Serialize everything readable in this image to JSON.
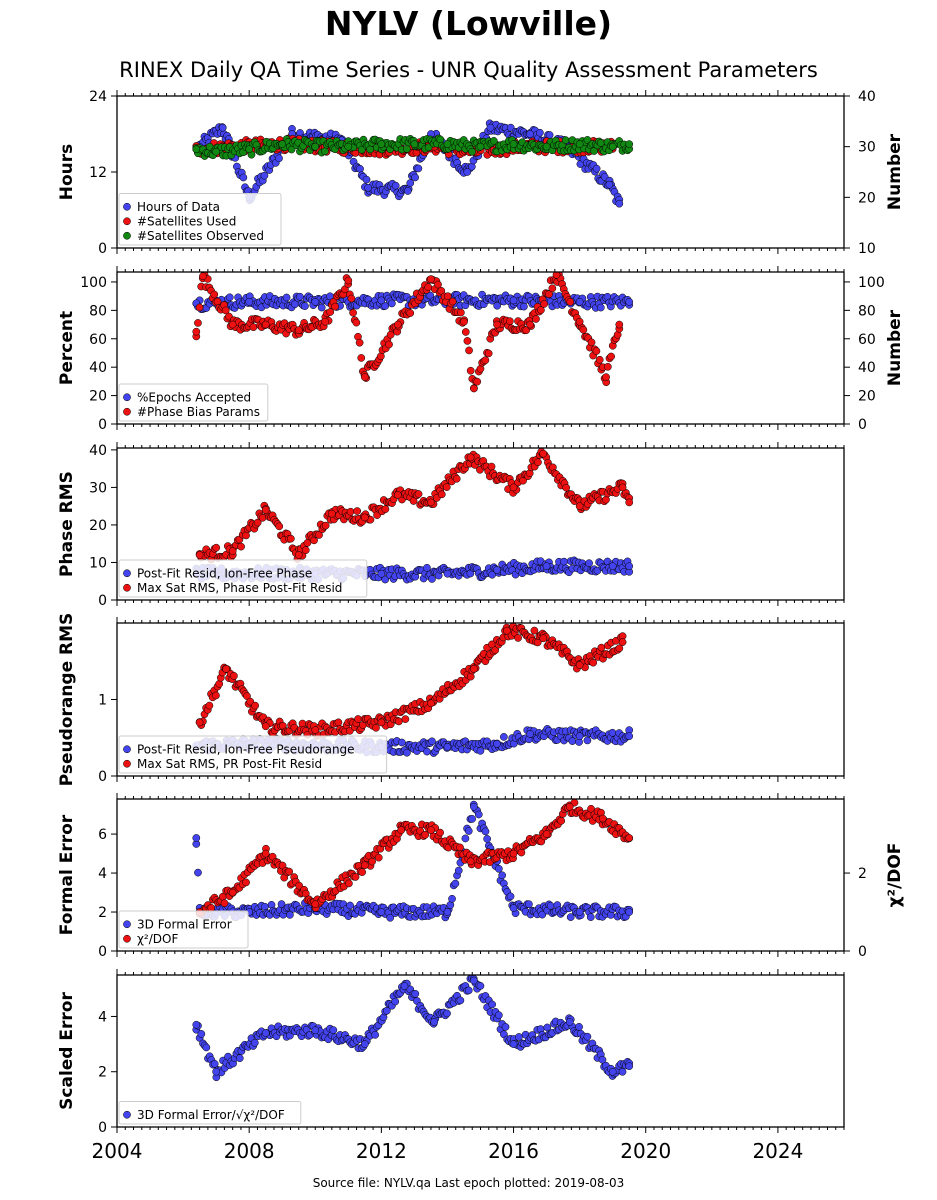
{
  "title": "NYLV (Lowville)",
  "subtitle": "RINEX Daily QA Time Series - UNR Quality Assessment Parameters",
  "footer": "Source file: NYLV.qa Last epoch plotted: 2019-08-03",
  "colors": {
    "blue": "#4444ee",
    "red": "#ee1111",
    "green": "#118811",
    "edge": "#000000"
  },
  "chart_data": [
    {
      "type": "scatter",
      "ylabel": "Hours",
      "ylabel_right": "Number",
      "xlim": [
        2004,
        2026
      ],
      "ylim": [
        0,
        24
      ],
      "ylim_right": [
        10,
        40
      ],
      "yticks": [
        "0",
        "12",
        "24"
      ],
      "yticks_right": [
        "10",
        "20",
        "30",
        "40"
      ],
      "legend_position": "lower-left",
      "series": [
        {
          "name": "Hours of Data",
          "color": "blue",
          "axis": "left",
          "x": [
            2006.5,
            2007.2,
            2008.0,
            2009.3,
            2010.8,
            2011.6,
            2012.8,
            2013.5,
            2014.6,
            2015.3,
            2016.5,
            2017.6,
            2018.9,
            2019.2
          ],
          "y": [
            16,
            19,
            8,
            18,
            17,
            9.5,
            9,
            18,
            12,
            19,
            18,
            16,
            10,
            7
          ]
        },
        {
          "name": "#Satellites Used",
          "color": "red",
          "axis": "right",
          "x": [
            2006.4,
            2007.5,
            2009.0,
            2010.5,
            2012.0,
            2013.6,
            2014.8,
            2016.2,
            2017.8,
            2019.0
          ],
          "y": [
            29.5,
            30,
            30.5,
            30,
            29.5,
            30,
            29,
            30,
            30,
            30
          ]
        },
        {
          "name": "#Satellites Observed",
          "color": "green",
          "axis": "right",
          "x": [
            2006.4,
            2007.0,
            2008.0,
            2009.0,
            2010.0,
            2011.0,
            2012.0,
            2013.0,
            2014.0,
            2015.0,
            2016.0,
            2017.0,
            2018.0,
            2019.0,
            2019.5
          ],
          "y": [
            29.5,
            29,
            29.5,
            30.5,
            30,
            30,
            30.5,
            30.5,
            30.5,
            30,
            30.5,
            30,
            30.5,
            30,
            30.5
          ]
        }
      ]
    },
    {
      "type": "scatter",
      "ylabel": "Percent",
      "ylabel_right": "Number",
      "xlim": [
        2004,
        2026
      ],
      "ylim": [
        0,
        107
      ],
      "yticks": [
        "0",
        "20",
        "40",
        "60",
        "80",
        "100"
      ],
      "yticks_right": [
        "0",
        "20",
        "40",
        "60",
        "80",
        "100"
      ],
      "legend_position": "lower-left",
      "series": [
        {
          "name": "%Epochs Accepted",
          "color": "blue",
          "axis": "left",
          "x": [
            2006.4,
            2008.0,
            2010.0,
            2012.0,
            2014.0,
            2016.0,
            2018.0,
            2019.5
          ],
          "y": [
            85,
            86,
            86,
            87,
            87,
            87,
            86,
            86
          ]
        },
        {
          "name": "#Phase Bias Params",
          "color": "red",
          "axis": "right",
          "x": [
            2006.4,
            2006.6,
            2007.5,
            2008.5,
            2009.5,
            2010.3,
            2011.0,
            2011.5,
            2012.5,
            2013.5,
            2014.5,
            2014.8,
            2015.5,
            2016.5,
            2017.3,
            2018.0,
            2018.8,
            2019.2
          ],
          "y": [
            65,
            104,
            70,
            70,
            66,
            72,
            101,
            33,
            70,
            102,
            72,
            25,
            70,
            70,
            105,
            72,
            33,
            70
          ]
        }
      ]
    },
    {
      "type": "scatter",
      "ylabel": "Phase RMS",
      "xlim": [
        2004,
        2026
      ],
      "ylim": [
        0,
        40.5
      ],
      "yticks": [
        "0",
        "10",
        "20",
        "30",
        "40"
      ],
      "legend_position": "lower-left",
      "series": [
        {
          "name": "Post-Fit Resid, Ion-Free Phase",
          "color": "blue",
          "axis": "left",
          "x": [
            2006.4,
            2008.0,
            2010.0,
            2012.0,
            2014.0,
            2015.5,
            2017.0,
            2019.0,
            2019.5
          ],
          "y": [
            7,
            7,
            7,
            7,
            7,
            8,
            9,
            9,
            9
          ]
        },
        {
          "name": "Max Sat RMS, Phase Post-Fit Resid",
          "color": "red",
          "axis": "left",
          "x": [
            2006.5,
            2007.5,
            2008.5,
            2009.5,
            2010.5,
            2011.5,
            2012.5,
            2013.5,
            2014.7,
            2016.0,
            2016.9,
            2018.0,
            2019.3,
            2019.5
          ],
          "y": [
            12,
            13,
            24,
            12,
            23,
            22,
            28,
            26,
            38,
            30,
            39,
            25,
            30,
            26
          ]
        }
      ]
    },
    {
      "type": "scatter",
      "ylabel": "Pseudorange RMS",
      "xlim": [
        2004,
        2026
      ],
      "ylim": [
        0,
        2.0
      ],
      "yticks": [
        "0",
        "1"
      ],
      "legend_position": "lower-left",
      "series": [
        {
          "name": "Post-Fit Resid, Ion-Free Pseudorange",
          "color": "blue",
          "axis": "left",
          "x": [
            2006.4,
            2008.0,
            2010.0,
            2012.0,
            2014.0,
            2015.5,
            2016.5,
            2018.0,
            2019.5
          ],
          "y": [
            0.4,
            0.42,
            0.4,
            0.38,
            0.38,
            0.42,
            0.55,
            0.52,
            0.52
          ]
        },
        {
          "name": "Max Sat RMS, PR Post-Fit Resid",
          "color": "red",
          "axis": "left",
          "x": [
            2006.5,
            2007.3,
            2008.5,
            2010.0,
            2012.0,
            2013.5,
            2014.8,
            2015.8,
            2016.9,
            2018.0,
            2019.3
          ],
          "y": [
            0.7,
            1.4,
            0.65,
            0.6,
            0.7,
            0.95,
            1.4,
            1.9,
            1.8,
            1.45,
            1.75
          ]
        }
      ]
    },
    {
      "type": "scatter",
      "ylabel": "Formal Error",
      "ylabel_right": "χ²/DOF",
      "xlim": [
        2004,
        2026
      ],
      "ylim": [
        0,
        7.8
      ],
      "ylim_right": [
        0,
        3.9
      ],
      "yticks": [
        "0",
        "2",
        "4",
        "6"
      ],
      "yticks_right": [
        "0",
        "2"
      ],
      "legend_position": "lower-left",
      "series": [
        {
          "name": "3D Formal Error",
          "color": "blue",
          "axis": "left",
          "x": [
            2006.4,
            2006.5,
            2008.0,
            2010.0,
            2012.0,
            2014.0,
            2014.8,
            2016.0,
            2018.0,
            2019.5
          ],
          "y": [
            5.8,
            2.0,
            2.0,
            2.2,
            2.0,
            2.0,
            7.4,
            2.2,
            2.0,
            2.0
          ]
        },
        {
          "name": "χ²/DOF",
          "color": "red",
          "axis": "right",
          "x": [
            2006.5,
            2007.5,
            2008.5,
            2010.0,
            2011.5,
            2012.6,
            2013.5,
            2014.7,
            2016.0,
            2017.0,
            2017.7,
            2018.7,
            2019.5
          ],
          "y": [
            1.0,
            1.5,
            2.5,
            1.2,
            2.2,
            3.1,
            3.1,
            2.3,
            2.5,
            3.0,
            3.7,
            3.4,
            2.9
          ]
        }
      ]
    },
    {
      "type": "scatter",
      "ylabel": "Scaled Error",
      "xlim": [
        2004,
        2026
      ],
      "ylim": [
        0,
        5.5
      ],
      "yticks": [
        "0",
        "2",
        "4"
      ],
      "xticks": [
        "2004",
        "2008",
        "2012",
        "2016",
        "2020",
        "2024"
      ],
      "legend_position": "lower-left",
      "series": [
        {
          "name": "3D Formal Error/√χ²/DOF",
          "color": "blue",
          "axis": "left",
          "x": [
            2006.4,
            2007.0,
            2008.5,
            2010.0,
            2011.5,
            2012.7,
            2013.6,
            2014.8,
            2016.0,
            2017.7,
            2019.0,
            2019.5
          ],
          "y": [
            3.7,
            2.0,
            3.4,
            3.5,
            3.0,
            5.1,
            3.8,
            5.3,
            3.0,
            3.8,
            2.0,
            2.2
          ]
        }
      ]
    }
  ]
}
